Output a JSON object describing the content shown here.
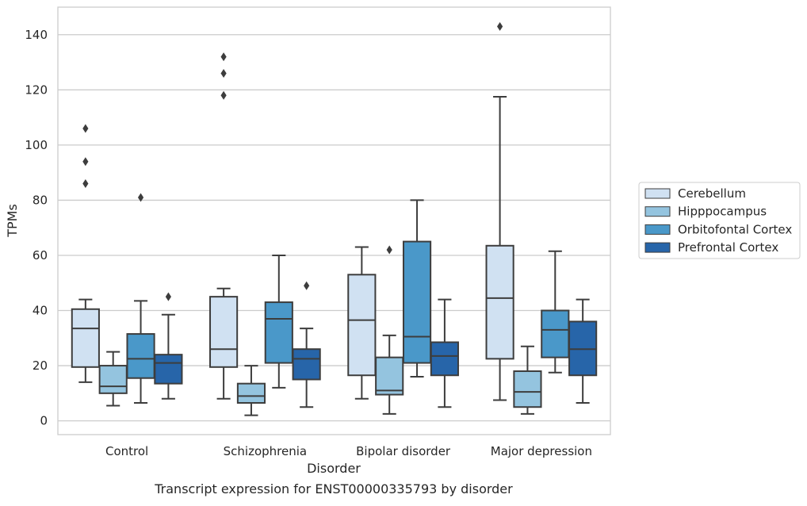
{
  "caption": "Transcript expression for ENST00000335793 by disorder",
  "chart_data": {
    "type": "box",
    "title": "",
    "xlabel": "Disorder",
    "ylabel": "TPMs",
    "ylim": [
      -5,
      150
    ],
    "yticks": [
      0,
      20,
      40,
      60,
      80,
      100,
      120,
      140
    ],
    "grid": "horizontal",
    "legend_position": "right",
    "categories": [
      "Control",
      "Schizophrenia",
      "Bipolar disorder",
      "Major depression"
    ],
    "series": [
      {
        "name": "Cerebellum",
        "color": "#d0e1f2",
        "boxes": [
          {
            "whisker_low": 14,
            "q1": 19.5,
            "median": 33.5,
            "q3": 40.5,
            "whisker_high": 44,
            "outliers": [
              86,
              94,
              106
            ]
          },
          {
            "whisker_low": 8,
            "q1": 19.5,
            "median": 26,
            "q3": 45,
            "whisker_high": 48,
            "outliers": [
              118,
              126,
              132
            ]
          },
          {
            "whisker_low": 8,
            "q1": 16.5,
            "median": 36.5,
            "q3": 53,
            "whisker_high": 63,
            "outliers": []
          },
          {
            "whisker_low": 7.5,
            "q1": 22.5,
            "median": 44.5,
            "q3": 63.5,
            "whisker_high": 117.5,
            "outliers": [
              143
            ]
          }
        ]
      },
      {
        "name": "Hipppocampus",
        "color": "#94c4df",
        "boxes": [
          {
            "whisker_low": 5.5,
            "q1": 10,
            "median": 12.5,
            "q3": 20,
            "whisker_high": 25,
            "outliers": []
          },
          {
            "whisker_low": 2,
            "q1": 6.5,
            "median": 9,
            "q3": 13.5,
            "whisker_high": 20,
            "outliers": []
          },
          {
            "whisker_low": 2.5,
            "q1": 9.5,
            "median": 11,
            "q3": 23,
            "whisker_high": 31,
            "outliers": [
              62
            ]
          },
          {
            "whisker_low": 2.5,
            "q1": 5,
            "median": 10.5,
            "q3": 18,
            "whisker_high": 27,
            "outliers": []
          }
        ]
      },
      {
        "name": "Orbitofontal Cortex",
        "color": "#4a98c9",
        "boxes": [
          {
            "whisker_low": 6.5,
            "q1": 15.5,
            "median": 22.5,
            "q3": 31.5,
            "whisker_high": 43.5,
            "outliers": [
              81
            ]
          },
          {
            "whisker_low": 12,
            "q1": 21,
            "median": 37,
            "q3": 43,
            "whisker_high": 60,
            "outliers": []
          },
          {
            "whisker_low": 16,
            "q1": 21,
            "median": 30.5,
            "q3": 65,
            "whisker_high": 80,
            "outliers": []
          },
          {
            "whisker_low": 17.5,
            "q1": 23,
            "median": 33,
            "q3": 40,
            "whisker_high": 61.5,
            "outliers": []
          }
        ]
      },
      {
        "name": "Prefrontal Cortex",
        "color": "#2765a9",
        "boxes": [
          {
            "whisker_low": 8,
            "q1": 13.5,
            "median": 21,
            "q3": 24,
            "whisker_high": 38.5,
            "outliers": [
              45
            ]
          },
          {
            "whisker_low": 5,
            "q1": 15,
            "median": 22.5,
            "q3": 26,
            "whisker_high": 33.5,
            "outliers": [
              49
            ]
          },
          {
            "whisker_low": 5,
            "q1": 16.5,
            "median": 23.5,
            "q3": 28.5,
            "whisker_high": 44,
            "outliers": []
          },
          {
            "whisker_low": 6.5,
            "q1": 16.5,
            "median": 26,
            "q3": 36,
            "whisker_high": 44,
            "outliers": []
          }
        ]
      }
    ]
  }
}
